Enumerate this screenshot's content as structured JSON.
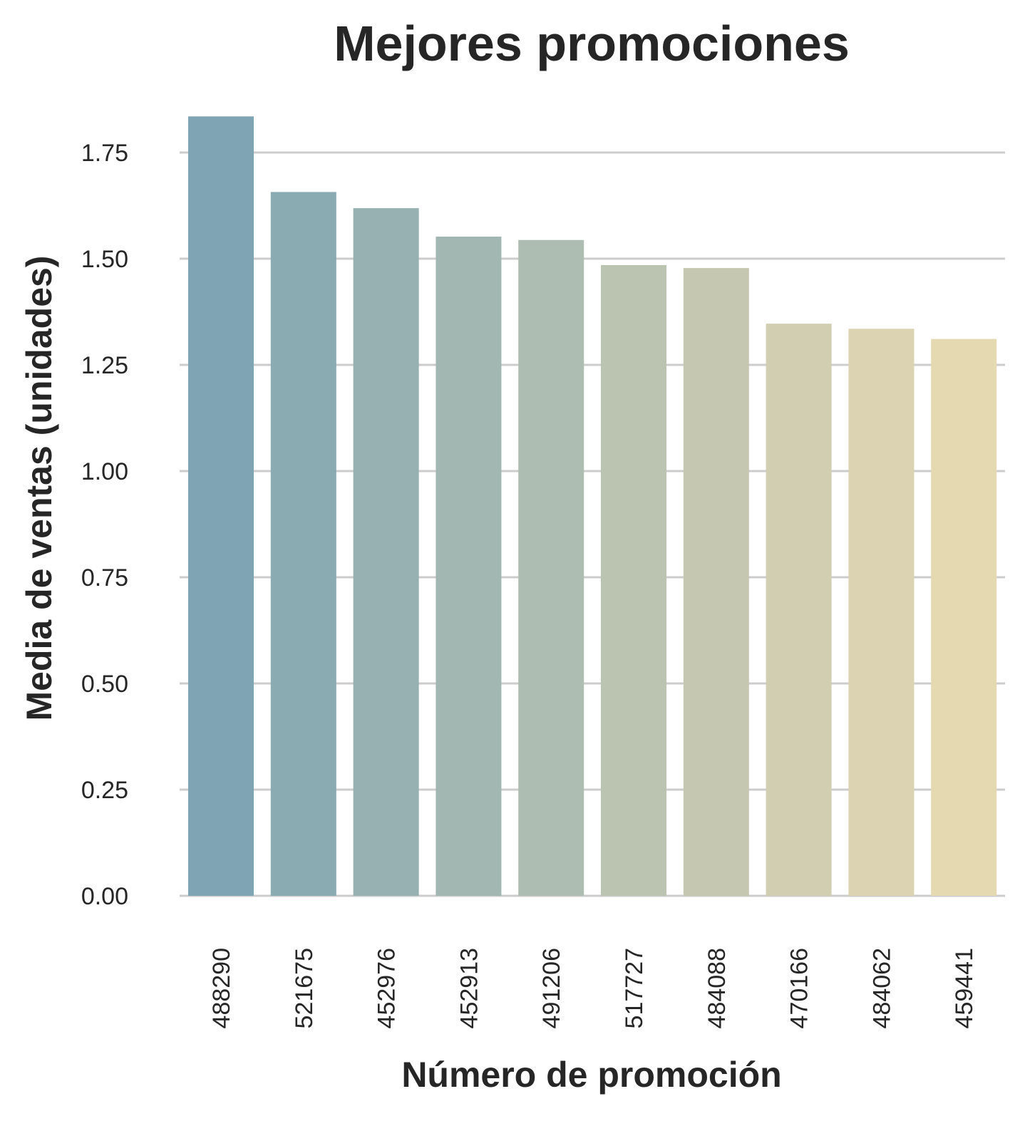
{
  "chart_data": {
    "type": "bar",
    "title": "Mejores promociones",
    "xlabel": "Número de promoción",
    "ylabel": "Media de ventas (unidades)",
    "categories": [
      "488290",
      "521675",
      "452976",
      "452913",
      "491206",
      "517727",
      "484088",
      "470166",
      "484062",
      "459441"
    ],
    "values": [
      1.835,
      1.657,
      1.619,
      1.552,
      1.544,
      1.485,
      1.478,
      1.347,
      1.335,
      1.311
    ],
    "colors": [
      "#7fa4b3",
      "#8babb3",
      "#97b1b3",
      "#a2b7b2",
      "#aebdb1",
      "#bac4b0",
      "#c6c7b0",
      "#d1ceb1",
      "#dbd3b1",
      "#e5d9b1"
    ],
    "yticks": [
      "0.00",
      "0.25",
      "0.50",
      "0.75",
      "1.00",
      "1.25",
      "1.50",
      "1.75"
    ],
    "ylim": [
      0,
      1.84
    ],
    "grid": true,
    "legend": false
  }
}
